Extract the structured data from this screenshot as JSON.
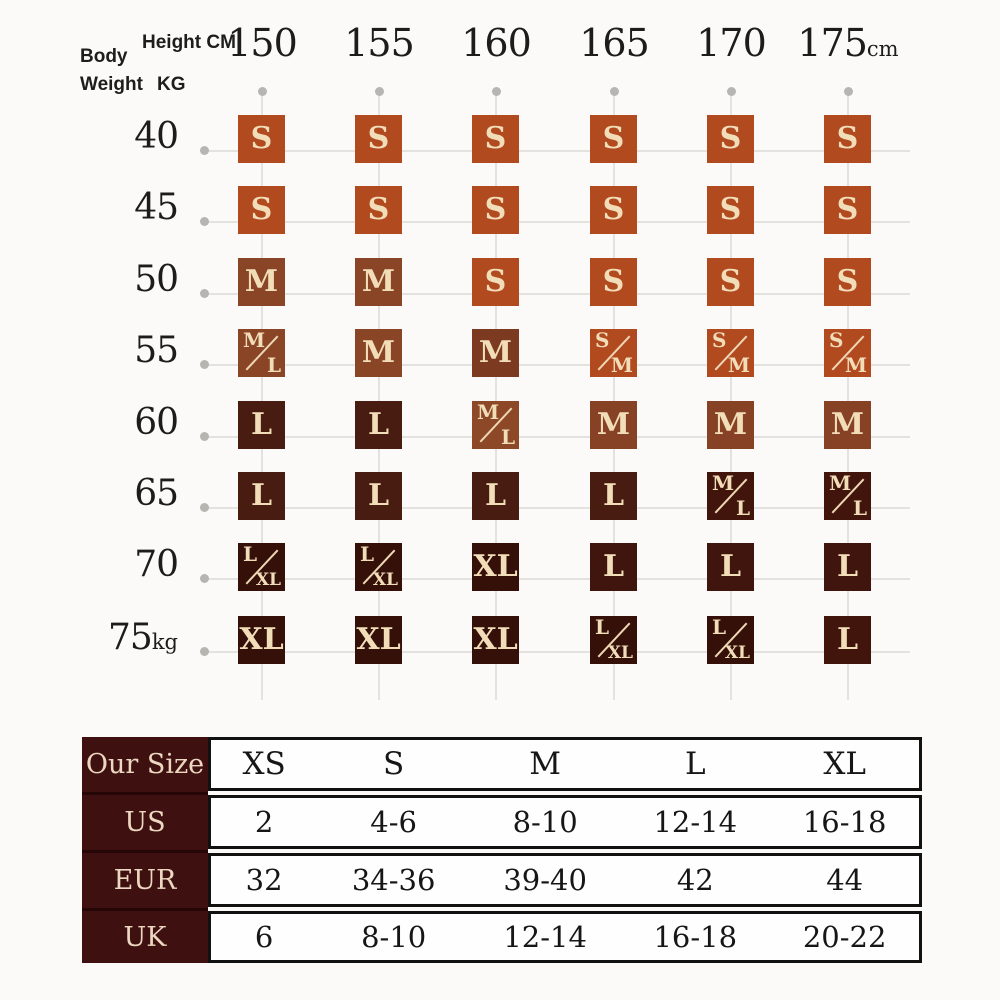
{
  "page": {
    "background": "#fbfaf8"
  },
  "matrix": {
    "body_label": "Body",
    "weight_label": "Weight",
    "weight_unit_label": "KG",
    "height_label": "Height CM"
  },
  "chart_data": [
    {
      "type": "heatmap",
      "xlabel": "Height CM",
      "ylabel": "Body Weight KG",
      "columns": [
        "150",
        "155",
        "160",
        "165",
        "170",
        "175cm"
      ],
      "rows": [
        "40",
        "45",
        "50",
        "55",
        "60",
        "65",
        "70",
        "75kg"
      ],
      "cells": [
        [
          "S",
          "S",
          "S",
          "S",
          "S",
          "S"
        ],
        [
          "S",
          "S",
          "S",
          "S",
          "S",
          "S"
        ],
        [
          "M",
          "M",
          "S",
          "S",
          "S",
          "S"
        ],
        [
          "M/L",
          "M",
          "M",
          "S/M",
          "S/M",
          "S/M"
        ],
        [
          "L",
          "L",
          "M/L",
          "M",
          "M",
          "M"
        ],
        [
          "L",
          "L",
          "L",
          "L",
          "M/L",
          "M/L"
        ],
        [
          "L/XL",
          "L/XL",
          "XL",
          "L",
          "L",
          "L"
        ],
        [
          "XL",
          "XL",
          "XL",
          "L/XL",
          "L/XL",
          "L"
        ]
      ],
      "cell_colors": [
        [
          "#b24a20",
          "#b24a20",
          "#b24a20",
          "#b24a20",
          "#b24a20",
          "#b24a20"
        ],
        [
          "#b24a20",
          "#b24a20",
          "#b24a20",
          "#b24a20",
          "#b24a20",
          "#b24a20"
        ],
        [
          "#8a4426",
          "#8a4426",
          "#b24a20",
          "#b24a20",
          "#b24a20",
          "#b24a20"
        ],
        [
          "#8a4426",
          "#8a4426",
          "#7c3a21",
          "#b24a20",
          "#b24a20",
          "#b24a20"
        ],
        [
          "#481c10",
          "#481c10",
          "#8d4827",
          "#874124",
          "#874124",
          "#874124"
        ],
        [
          "#481c10",
          "#481c10",
          "#481c10",
          "#481c10",
          "#41150c",
          "#41150c"
        ],
        [
          "#341009",
          "#341009",
          "#341009",
          "#3f150d",
          "#3f150d",
          "#3f150d"
        ],
        [
          "#341009",
          "#341009",
          "#341009",
          "#341009",
          "#341009",
          "#41150c"
        ]
      ],
      "palette": {
        "S": "#b24a20",
        "M": "#8a4426",
        "L": "#481c10",
        "XL": "#341009"
      }
    },
    {
      "type": "table",
      "row_headers": [
        "Our Size",
        "US",
        "EUR",
        "UK"
      ],
      "columns": [
        "XS",
        "S",
        "M",
        "L",
        "XL"
      ],
      "rows": [
        [
          "2",
          "4-6",
          "8-10",
          "12-14",
          "16-18"
        ],
        [
          "32",
          "34-36",
          "39-40",
          "42",
          "44"
        ],
        [
          "6",
          "8-10",
          "12-14",
          "16-18",
          "20-22"
        ]
      ],
      "header_bg": "#3e1010",
      "header_text": "#ecd7c0"
    }
  ]
}
